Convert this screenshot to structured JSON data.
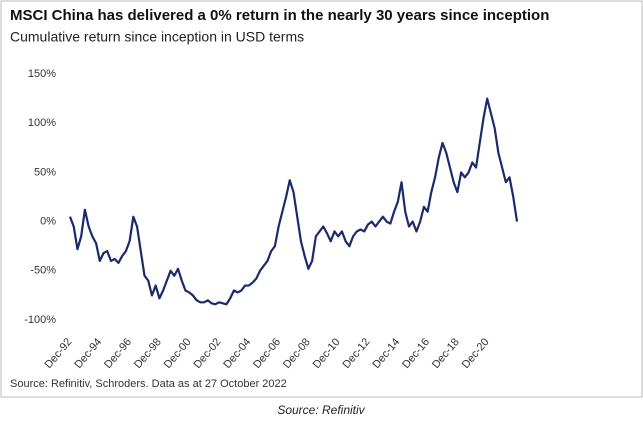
{
  "chart_data": {
    "type": "line",
    "title": "MSCI China has delivered a 0% return in the nearly 30 years since inception",
    "subtitle": "Cumulative return since inception in USD terms",
    "source": "Source: Refinitiv, Schroders. Data as at 27 October 2022",
    "caption": "Source: Refinitiv",
    "color": "#1b2a6b",
    "ylim": [
      -100,
      150
    ],
    "yticks": [
      {
        "value": -100,
        "label": "-100%"
      },
      {
        "value": -50,
        "label": "-50%"
      },
      {
        "value": 0,
        "label": "0%"
      },
      {
        "value": 50,
        "label": "50%"
      },
      {
        "value": 100,
        "label": "100%"
      },
      {
        "value": 150,
        "label": "150%"
      }
    ],
    "categories": [
      "Dec-92",
      null,
      null,
      null,
      null,
      null,
      null,
      null,
      "Dec-94",
      null,
      null,
      null,
      null,
      null,
      null,
      null,
      "Dec-96",
      null,
      null,
      null,
      null,
      null,
      null,
      null,
      "Dec-98",
      null,
      null,
      null,
      null,
      null,
      null,
      null,
      "Dec-00",
      null,
      null,
      null,
      null,
      null,
      null,
      null,
      "Dec-02",
      null,
      null,
      null,
      null,
      null,
      null,
      null,
      "Dec-04",
      null,
      null,
      null,
      null,
      null,
      null,
      null,
      "Dec-06",
      null,
      null,
      null,
      null,
      null,
      null,
      null,
      "Dec-08",
      null,
      null,
      null,
      null,
      null,
      null,
      null,
      "Dec-10",
      null,
      null,
      null,
      null,
      null,
      null,
      null,
      "Dec-12",
      null,
      null,
      null,
      null,
      null,
      null,
      null,
      "Dec-14",
      null,
      null,
      null,
      null,
      null,
      null,
      null,
      "Dec-16",
      null,
      null,
      null,
      null,
      null,
      null,
      null,
      "Dec-18",
      null,
      null,
      null,
      null,
      null,
      null,
      null,
      "Dec-20",
      null,
      null,
      null,
      null,
      null,
      null,
      null,
      null
    ],
    "values": [
      5,
      -5,
      -28,
      -15,
      12,
      -5,
      -15,
      -22,
      -40,
      -32,
      -30,
      -40,
      -38,
      -42,
      -35,
      -30,
      -20,
      5,
      -5,
      -30,
      -55,
      -60,
      -75,
      -65,
      -78,
      -70,
      -60,
      -50,
      -55,
      -48,
      -60,
      -70,
      -72,
      -75,
      -80,
      -82,
      -82,
      -80,
      -83,
      -84,
      -82,
      -83,
      -84,
      -78,
      -70,
      -72,
      -70,
      -65,
      -65,
      -62,
      -58,
      -50,
      -45,
      -40,
      -30,
      -25,
      -5,
      10,
      25,
      42,
      30,
      5,
      -20,
      -35,
      -48,
      -40,
      -15,
      -10,
      -5,
      -12,
      -20,
      -10,
      -15,
      -10,
      -20,
      -25,
      -15,
      -10,
      -8,
      -10,
      -3,
      0,
      -5,
      0,
      5,
      0,
      -2,
      10,
      20,
      40,
      10,
      -5,
      0,
      -10,
      0,
      15,
      10,
      30,
      45,
      65,
      80,
      70,
      55,
      40,
      30,
      50,
      45,
      50,
      60,
      55,
      80,
      105,
      125,
      110,
      95,
      70,
      55,
      40,
      45,
      25,
      0
    ]
  }
}
